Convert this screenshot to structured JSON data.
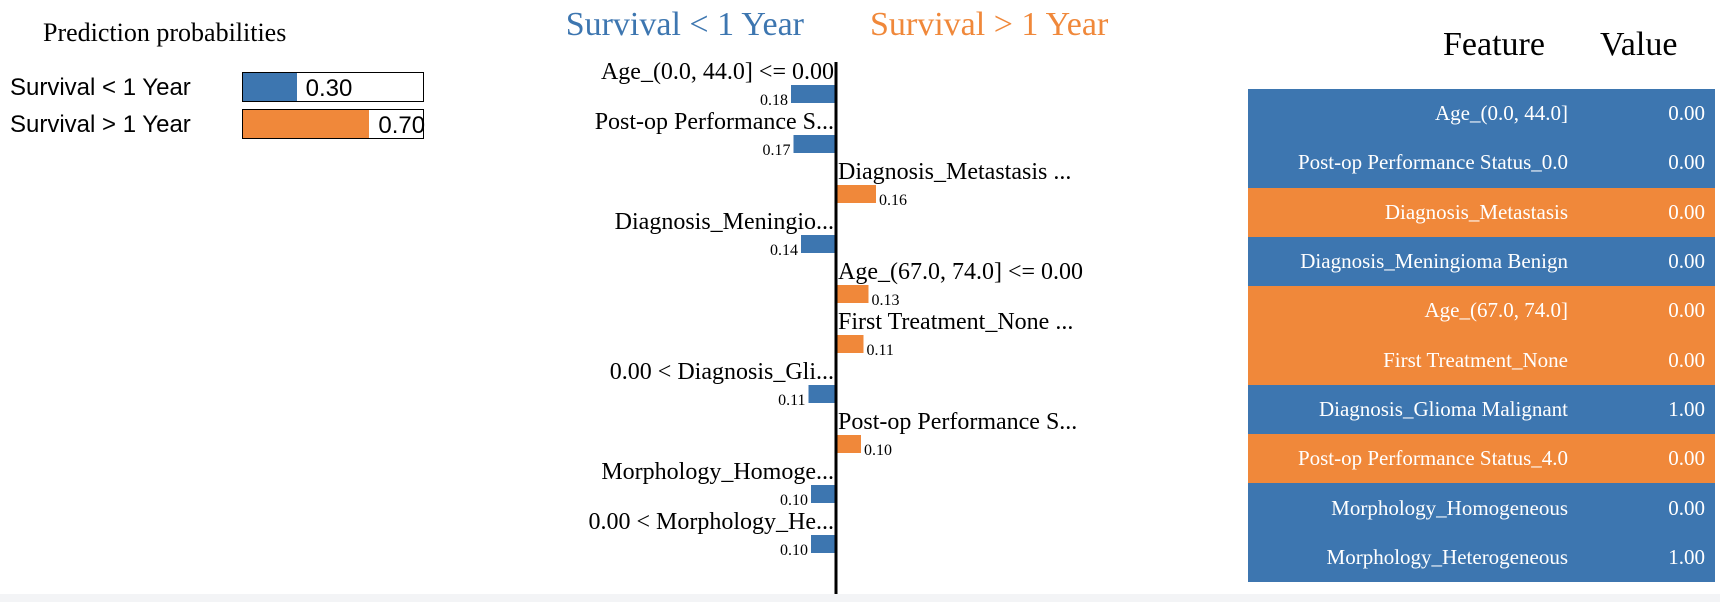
{
  "colors": {
    "blue": "#3d76b0",
    "orange": "#f0883a"
  },
  "prediction_probabilities": {
    "title": "Prediction probabilities",
    "rows": [
      {
        "label": "Survival < 1 Year",
        "value": "0.30",
        "fraction": 0.3,
        "color": "#3d76b0"
      },
      {
        "label": "Survival > 1 Year",
        "value": "0.70",
        "fraction": 0.7,
        "color": "#f0883a"
      }
    ]
  },
  "chart_data": {
    "type": "bar",
    "orientation": "horizontal-diverging",
    "class_left": "Survival < 1 Year",
    "class_right": "Survival > 1 Year",
    "bars": [
      {
        "label": "Age_(0.0, 44.0] <= 0.00",
        "value": 0.18,
        "value_label": "0.18",
        "side": "left"
      },
      {
        "label": "Post-op Performance S...",
        "value": 0.17,
        "value_label": "0.17",
        "side": "left"
      },
      {
        "label": "Diagnosis_Metastasis ...",
        "value": 0.16,
        "value_label": "0.16",
        "side": "right"
      },
      {
        "label": "Diagnosis_Meningio...",
        "value": 0.14,
        "value_label": "0.14",
        "side": "left"
      },
      {
        "label": "Age_(67.0, 74.0] <= 0.00",
        "value": 0.13,
        "value_label": "0.13",
        "side": "right"
      },
      {
        "label": "First Treatment_None ...",
        "value": 0.11,
        "value_label": "0.11",
        "side": "right"
      },
      {
        "label": "0.00 < Diagnosis_Gli...",
        "value": 0.11,
        "value_label": "0.11",
        "side": "left"
      },
      {
        "label": "Post-op Performance S...",
        "value": 0.1,
        "value_label": "0.10",
        "side": "right"
      },
      {
        "label": "Morphology_Homoge...",
        "value": 0.1,
        "value_label": "0.10",
        "side": "left"
      },
      {
        "label": "0.00 < Morphology_He...",
        "value": 0.1,
        "value_label": "0.10",
        "side": "left"
      }
    ]
  },
  "feature_table": {
    "header_feature": "Feature",
    "header_value": "Value",
    "rows": [
      {
        "feature": "Age_(0.0, 44.0]",
        "value": "0.00",
        "color": "#3d76b0"
      },
      {
        "feature": "Post-op Performance Status_0.0",
        "value": "0.00",
        "color": "#3d76b0"
      },
      {
        "feature": "Diagnosis_Metastasis",
        "value": "0.00",
        "color": "#f0883a"
      },
      {
        "feature": "Diagnosis_Meningioma Benign",
        "value": "0.00",
        "color": "#3d76b0"
      },
      {
        "feature": "Age_(67.0, 74.0]",
        "value": "0.00",
        "color": "#f0883a"
      },
      {
        "feature": "First Treatment_None",
        "value": "0.00",
        "color": "#f0883a"
      },
      {
        "feature": "Diagnosis_Glioma Malignant",
        "value": "1.00",
        "color": "#3d76b0"
      },
      {
        "feature": "Post-op Performance Status_4.0",
        "value": "0.00",
        "color": "#f0883a"
      },
      {
        "feature": "Morphology_Homogeneous",
        "value": "0.00",
        "color": "#3d76b0"
      },
      {
        "feature": "Morphology_Heterogeneous",
        "value": "1.00",
        "color": "#3d76b0"
      }
    ]
  }
}
